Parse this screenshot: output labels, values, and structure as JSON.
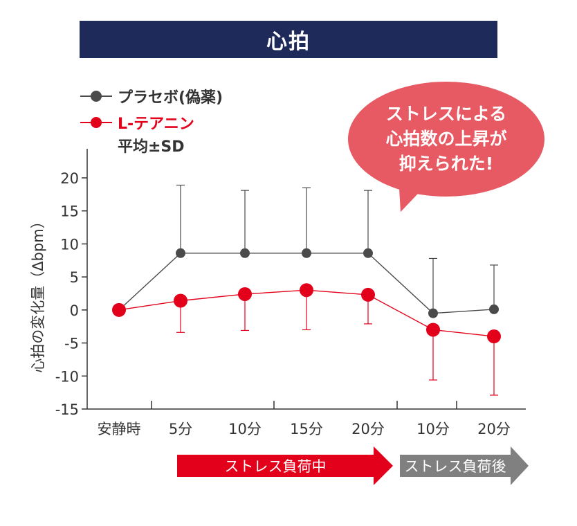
{
  "title": "心拍",
  "legend": {
    "placebo": "プラセボ(偽薬)",
    "theanine": "L-テアニン",
    "note": "平均±SD"
  },
  "callout": [
    "ストレスによる",
    "心拍数の上昇が",
    "抑えられた!"
  ],
  "phases": {
    "during": "ストレス負荷中",
    "after": "ストレス負荷後"
  },
  "colors": {
    "title_bg": "#1e2a5a",
    "placebo": "#4a4a4a",
    "theanine": "#e2001a",
    "callout": "#e85a63",
    "phase_during": "#e2001a",
    "phase_after": "#808080"
  },
  "chart_data": {
    "type": "line",
    "ylabel": "心拍の変化量（Δbpm）",
    "ylim": [
      -15,
      20
    ],
    "yticks": [
      20,
      15,
      10,
      5,
      0,
      -5,
      -10,
      -15
    ],
    "categories": [
      "安静時",
      "5分",
      "10分",
      "15分",
      "20分",
      "10分",
      "20分"
    ],
    "series": [
      {
        "name": "プラセボ(偽薬)",
        "color": "#4a4a4a",
        "values": [
          0,
          8.6,
          8.6,
          8.6,
          8.6,
          -0.5,
          0.1
        ],
        "error_upper": [
          0,
          18.9,
          18.1,
          18.5,
          18.1,
          7.8,
          6.8
        ],
        "error_lower": [
          0,
          8.6,
          8.6,
          8.6,
          8.6,
          -0.5,
          0.1
        ]
      },
      {
        "name": "L-テアニン",
        "color": "#e2001a",
        "values": [
          0,
          1.4,
          2.4,
          3.0,
          2.3,
          -3.0,
          -4.0
        ],
        "error_upper": [
          0,
          1.4,
          2.4,
          3.0,
          2.3,
          -3.0,
          -4.0
        ],
        "error_lower": [
          0,
          -3.4,
          -3.1,
          -3.0,
          -2.1,
          -10.6,
          -12.9
        ]
      }
    ]
  }
}
